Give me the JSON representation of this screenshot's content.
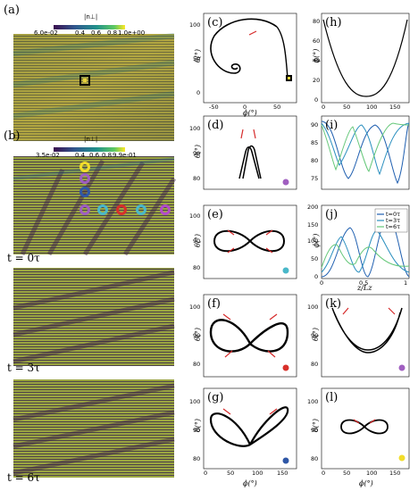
{
  "panels": {
    "a": "(a)",
    "b": "(b)",
    "c": "(c)",
    "d": "(d)",
    "e": "(e)",
    "f": "(f)",
    "g": "(g)",
    "h": "(h)",
    "i": "(i)",
    "j": "(j)",
    "k": "(k)",
    "l": "(l)"
  },
  "colorbar_a": {
    "label": "|n⊥|",
    "ticks": [
      "6.0e-02",
      "0.4",
      "0.6",
      "0.8",
      "1.0e+00"
    ]
  },
  "colorbar_b": {
    "label": "|n⊥|",
    "ticks": [
      "3.5e-02",
      "0.4",
      "0.6",
      "0.8",
      "9.9e-01"
    ]
  },
  "time_labels": [
    "t = 0τ",
    "t = 3τ",
    "t = 6τ"
  ],
  "axes": {
    "phi": "ϕ(°)",
    "theta": "θ(°)",
    "zlz": "z/Lz"
  },
  "marker_colors": {
    "yellow": "#f2dd2a",
    "purple": "#a05fc0",
    "blue": "#2f57a6",
    "red": "#d8302a",
    "cyan": "#4ab8c9",
    "magenta": "#b34cc9"
  },
  "series_colors": {
    "t0": "#1f5fb0",
    "t3": "#2a8fbf",
    "t6": "#66c87a"
  },
  "chart_data": [
    {
      "panel": "c",
      "type": "line",
      "xticks": [
        "-50",
        "0",
        "50"
      ],
      "yticks": [
        "0",
        "50",
        "100"
      ],
      "xlim": [
        -70,
        90
      ],
      "ylim": [
        -10,
        140
      ]
    },
    {
      "panel": "h",
      "type": "line",
      "xticks": [
        "0",
        "50",
        "100",
        "150"
      ],
      "yticks": [
        "0",
        "20",
        "40",
        "60",
        "80"
      ],
      "xlim": [
        0,
        180
      ],
      "ylim": [
        0,
        90
      ]
    },
    {
      "panel": "d",
      "type": "line",
      "yticks": [
        "80",
        "90",
        "100"
      ],
      "ylim": [
        75,
        105
      ]
    },
    {
      "panel": "e",
      "type": "line",
      "yticks": [
        "80",
        "90",
        "100"
      ],
      "ylim": [
        75,
        105
      ]
    },
    {
      "panel": "f",
      "type": "line",
      "yticks": [
        "80",
        "90",
        "100"
      ],
      "ylim": [
        75,
        105
      ]
    },
    {
      "panel": "g",
      "type": "line",
      "xticks": [
        "0",
        "50",
        "100",
        "150"
      ],
      "yticks": [
        "80",
        "90",
        "100"
      ],
      "xlim": [
        0,
        180
      ],
      "ylim": [
        75,
        105
      ]
    },
    {
      "panel": "i",
      "type": "line",
      "yticks": [
        "75",
        "80",
        "85",
        "90"
      ],
      "ylim": [
        70,
        92
      ]
    },
    {
      "panel": "j",
      "type": "line",
      "xticks": [
        "0",
        "0.5",
        "1"
      ],
      "yticks": [
        "0",
        "50",
        "100",
        "150",
        "200"
      ],
      "xlim": [
        0,
        1
      ],
      "ylim": [
        0,
        200
      ],
      "legend": [
        "t=0τ",
        "t=3τ",
        "t=6τ"
      ],
      "legend_position": "top-right"
    },
    {
      "panel": "k",
      "type": "line",
      "yticks": [
        "80",
        "90",
        "100"
      ],
      "ylim": [
        75,
        105
      ]
    },
    {
      "panel": "l",
      "type": "line",
      "xticks": [
        "0",
        "50",
        "100",
        "150"
      ],
      "yticks": [
        "80",
        "90",
        "100"
      ],
      "xlim": [
        0,
        180
      ],
      "ylim": [
        75,
        105
      ]
    }
  ]
}
